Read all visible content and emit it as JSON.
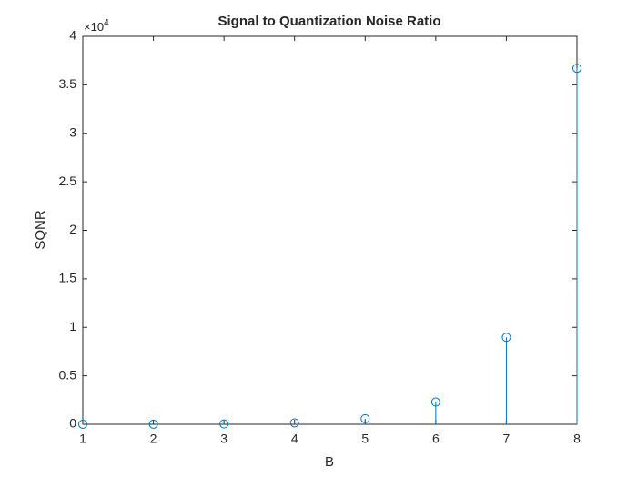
{
  "chart_data": {
    "type": "stem",
    "title": "Signal to Quantization Noise Ratio",
    "x_label": "B",
    "y_label": "SQNR",
    "y_exponent": {
      "base": "×10",
      "power": "4"
    },
    "x": [
      1,
      2,
      3,
      4,
      5,
      6,
      7,
      8
    ],
    "series": [
      {
        "name": "SQNR",
        "color": "#0072bd",
        "values": [
          2.2,
          9,
          36,
          143,
          573,
          2293,
          8970,
          36700
        ]
      }
    ],
    "xlim": [
      1,
      8
    ],
    "xticks": [
      1,
      2,
      3,
      4,
      5,
      6,
      7,
      8
    ],
    "ylim": [
      0,
      40000
    ],
    "yticks": [
      0,
      {
        "value": 5000,
        "label": "0.5"
      },
      {
        "value": 10000,
        "label": "1"
      },
      {
        "value": 15000,
        "label": "1.5"
      },
      {
        "value": 20000,
        "label": "2"
      },
      {
        "value": 25000,
        "label": "2.5"
      },
      {
        "value": 30000,
        "label": "3"
      },
      {
        "value": 35000,
        "label": "3.5"
      },
      {
        "value": 40000,
        "label": "4"
      }
    ],
    "grid": false
  }
}
